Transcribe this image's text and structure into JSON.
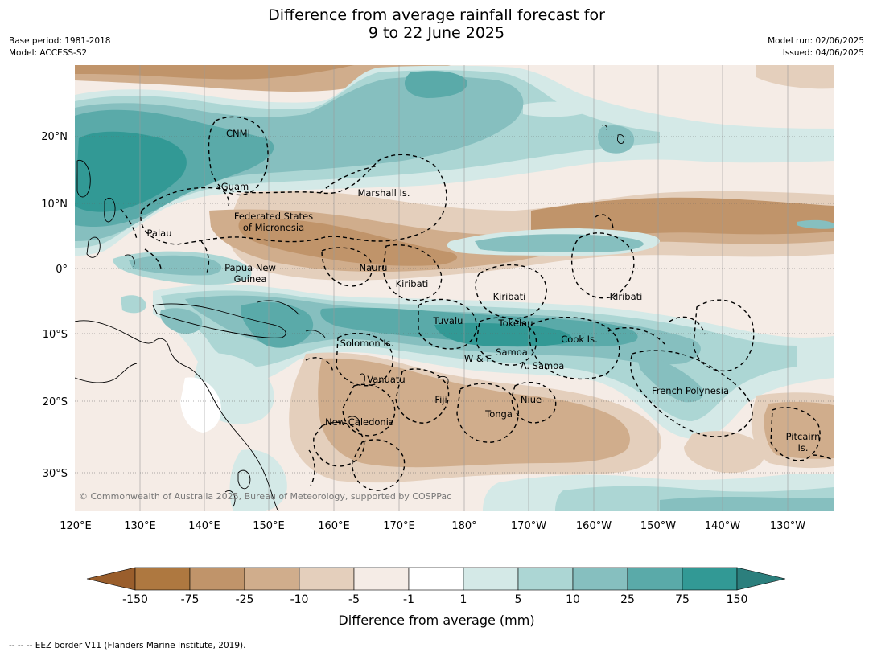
{
  "title": {
    "line1": "Difference from average rainfall forecast for",
    "line2": "9 to 22 June 2025"
  },
  "meta": {
    "base_period": "Base period: 1981-2018",
    "model": "Model: ACCESS-S2",
    "model_run": "Model run: 02/06/2025",
    "issued": "Issued: 04/06/2025"
  },
  "map": {
    "lat_labels": [
      "20°N",
      "10°N",
      "0°",
      "10°S",
      "20°S",
      "30°S"
    ],
    "lon_labels": [
      "120°E",
      "130°E",
      "140°E",
      "150°E",
      "160°E",
      "170°E",
      "180°",
      "170°W",
      "160°W",
      "150°W",
      "140°W",
      "130°W"
    ],
    "places": [
      "CNMI",
      "Guam",
      "Marshall Is.",
      "Federated States",
      "of Micronesia",
      "Palau",
      "Papua New",
      "Guinea",
      "Nauru",
      "Kiribati",
      "Kiribati",
      "Kiribati",
      "Tuvalu",
      "Tokelau",
      "Cook Is.",
      "Solomon Is.",
      "W & F",
      "Samoa",
      "A. Samoa",
      "Vanuatu",
      "Fiji",
      "Niue",
      "French Polynesia",
      "Tonga",
      "New Caledonia",
      "Pitcairn",
      "Is."
    ],
    "copyright": "© Commonwealth of Australia 2025, Bureau of Meteorology, supported by COSPPac"
  },
  "colorbar": {
    "colors": [
      "#9a5e2c",
      "#ae7840",
      "#c0946a",
      "#d0ad8c",
      "#e4cfbc",
      "#f5ece6",
      "#ffffff",
      "#d4e9e7",
      "#acd6d4",
      "#86bfbf",
      "#5aaaa9",
      "#329995",
      "#2c7f7d"
    ],
    "tick_labels": [
      "-150",
      "-75",
      "-25",
      "-10",
      "-5",
      "-1",
      "1",
      "5",
      "10",
      "25",
      "75",
      "150"
    ],
    "title": "Difference from average (mm)"
  },
  "footer": "--  --  -- EEZ border V11 (Flanders Marine Institute, 2019)."
}
